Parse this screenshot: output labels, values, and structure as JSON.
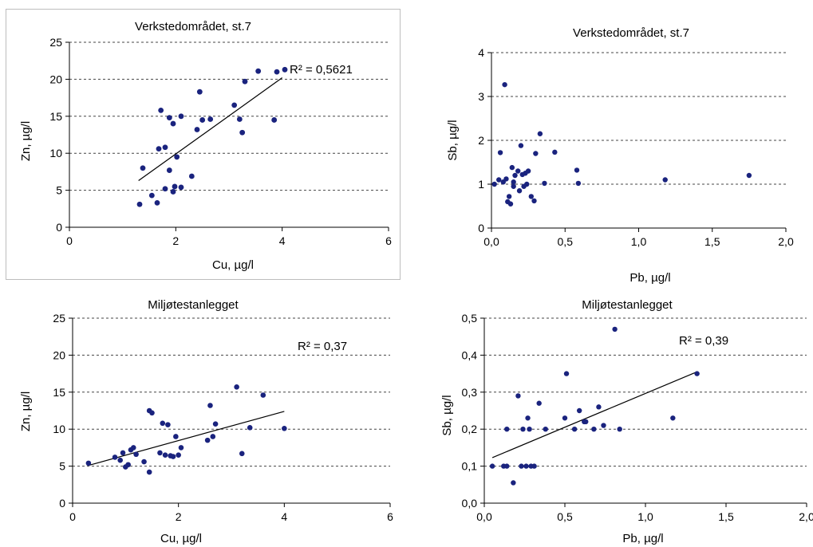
{
  "chart_data": [
    {
      "type": "scatter",
      "title": "Verkstedområdet, st.7",
      "xlabel": "Cu, µg/l",
      "ylabel": "Zn, µg/l",
      "xlim": [
        0,
        6
      ],
      "ylim": [
        0,
        25
      ],
      "xticks": [
        0,
        2,
        4,
        6
      ],
      "yticks": [
        0,
        5,
        10,
        15,
        20,
        25
      ],
      "xtick_labels": [
        "0",
        "2",
        "4",
        "6"
      ],
      "ytick_labels": [
        "0",
        "5",
        "10",
        "15",
        "20",
        "25"
      ],
      "annotation": "R² = 0,5621",
      "grid": "horizontal-dashed",
      "trendline": {
        "x1": 1.3,
        "y1": 6.3,
        "x2": 4.0,
        "y2": 20.2
      },
      "points": [
        [
          1.32,
          3.1
        ],
        [
          1.38,
          8.0
        ],
        [
          1.55,
          4.3
        ],
        [
          1.65,
          3.3
        ],
        [
          1.68,
          10.6
        ],
        [
          1.72,
          15.8
        ],
        [
          1.8,
          10.8
        ],
        [
          1.8,
          5.2
        ],
        [
          1.88,
          14.8
        ],
        [
          1.88,
          7.7
        ],
        [
          1.95,
          14.0
        ],
        [
          1.95,
          4.8
        ],
        [
          1.98,
          5.5
        ],
        [
          2.02,
          9.5
        ],
        [
          2.1,
          15.0
        ],
        [
          2.1,
          5.4
        ],
        [
          2.3,
          6.9
        ],
        [
          2.4,
          13.2
        ],
        [
          2.45,
          18.3
        ],
        [
          2.5,
          14.5
        ],
        [
          2.65,
          14.6
        ],
        [
          3.1,
          16.5
        ],
        [
          3.2,
          14.6
        ],
        [
          3.25,
          12.8
        ],
        [
          3.3,
          19.7
        ],
        [
          3.55,
          21.1
        ],
        [
          3.85,
          14.5
        ],
        [
          3.9,
          21.0
        ],
        [
          4.05,
          21.3
        ]
      ]
    },
    {
      "type": "scatter",
      "title": "Verkstedområdet, st.7",
      "xlabel": "Pb, µg/l",
      "ylabel": "Sb, µg/l",
      "xlim": [
        0,
        2
      ],
      "ylim": [
        0,
        4
      ],
      "xticks": [
        0,
        0.5,
        1,
        1.5,
        2
      ],
      "yticks": [
        0,
        1,
        2,
        3,
        4
      ],
      "xtick_labels": [
        "0,0",
        "0,5",
        "1,0",
        "1,5",
        "2,0"
      ],
      "ytick_labels": [
        "0",
        "1",
        "2",
        "3",
        "4"
      ],
      "annotation": "",
      "grid": "horizontal-dashed",
      "points": [
        [
          0.02,
          1.0
        ],
        [
          0.05,
          1.1
        ],
        [
          0.06,
          1.72
        ],
        [
          0.08,
          1.05
        ],
        [
          0.09,
          3.27
        ],
        [
          0.1,
          1.12
        ],
        [
          0.11,
          0.6
        ],
        [
          0.12,
          0.72
        ],
        [
          0.13,
          0.55
        ],
        [
          0.14,
          1.38
        ],
        [
          0.15,
          0.95
        ],
        [
          0.15,
          1.05
        ],
        [
          0.16,
          1.2
        ],
        [
          0.18,
          1.3
        ],
        [
          0.19,
          0.85
        ],
        [
          0.2,
          1.88
        ],
        [
          0.21,
          1.22
        ],
        [
          0.22,
          0.95
        ],
        [
          0.23,
          1.25
        ],
        [
          0.24,
          1.0
        ],
        [
          0.25,
          1.3
        ],
        [
          0.27,
          0.72
        ],
        [
          0.29,
          0.62
        ],
        [
          0.3,
          1.7
        ],
        [
          0.33,
          2.15
        ],
        [
          0.36,
          1.02
        ],
        [
          0.43,
          1.73
        ],
        [
          0.58,
          1.32
        ],
        [
          0.59,
          1.02
        ],
        [
          1.18,
          1.1
        ],
        [
          1.75,
          1.2
        ]
      ]
    },
    {
      "type": "scatter",
      "title": "Miljøtestanlegget",
      "xlabel": "Cu, µg/l",
      "ylabel": "Zn, µg/l",
      "xlim": [
        0,
        6
      ],
      "ylim": [
        0,
        25
      ],
      "xticks": [
        0,
        2,
        4,
        6
      ],
      "yticks": [
        0,
        5,
        10,
        15,
        20,
        25
      ],
      "xtick_labels": [
        "0",
        "2",
        "4",
        "6"
      ],
      "ytick_labels": [
        "0",
        "5",
        "10",
        "15",
        "20",
        "25"
      ],
      "annotation": "R² = 0,37",
      "grid": "horizontal-dashed",
      "trendline": {
        "x1": 0.3,
        "y1": 5.1,
        "x2": 4.0,
        "y2": 12.4
      },
      "points": [
        [
          0.3,
          5.4
        ],
        [
          0.8,
          6.2
        ],
        [
          0.9,
          5.8
        ],
        [
          0.95,
          6.8
        ],
        [
          1.0,
          4.9
        ],
        [
          1.05,
          5.2
        ],
        [
          1.1,
          7.2
        ],
        [
          1.15,
          7.5
        ],
        [
          1.2,
          6.6
        ],
        [
          1.35,
          5.6
        ],
        [
          1.45,
          4.2
        ],
        [
          1.45,
          12.5
        ],
        [
          1.5,
          12.2
        ],
        [
          1.65,
          6.8
        ],
        [
          1.7,
          10.8
        ],
        [
          1.75,
          6.5
        ],
        [
          1.8,
          10.6
        ],
        [
          1.85,
          6.4
        ],
        [
          1.9,
          6.3
        ],
        [
          1.95,
          9.0
        ],
        [
          2.0,
          6.5
        ],
        [
          2.05,
          7.5
        ],
        [
          2.55,
          8.5
        ],
        [
          2.6,
          13.2
        ],
        [
          2.65,
          9.0
        ],
        [
          2.7,
          10.7
        ],
        [
          3.1,
          15.7
        ],
        [
          3.2,
          6.7
        ],
        [
          3.35,
          10.2
        ],
        [
          3.6,
          14.6
        ],
        [
          4.0,
          10.1
        ]
      ]
    },
    {
      "type": "scatter",
      "title": "Miljøtestanlegget",
      "xlabel": "Pb, µg/l",
      "ylabel": "Sb, µg/l",
      "xlim": [
        0,
        2
      ],
      "ylim": [
        0,
        0.5
      ],
      "xticks": [
        0,
        0.5,
        1,
        1.5,
        2
      ],
      "yticks": [
        0,
        0.1,
        0.2,
        0.3,
        0.4,
        0.5
      ],
      "xtick_labels": [
        "0,0",
        "0,5",
        "1,0",
        "1,5",
        "2,0"
      ],
      "ytick_labels": [
        "0,0",
        "0,1",
        "0,2",
        "0,3",
        "0,4",
        "0,5"
      ],
      "annotation": "R² = 0,39",
      "grid": "horizontal-dashed",
      "trendline": {
        "x1": 0.05,
        "y1": 0.123,
        "x2": 1.32,
        "y2": 0.355
      },
      "points": [
        [
          0.05,
          0.1
        ],
        [
          0.12,
          0.1
        ],
        [
          0.14,
          0.1
        ],
        [
          0.14,
          0.2
        ],
        [
          0.18,
          0.055
        ],
        [
          0.21,
          0.29
        ],
        [
          0.23,
          0.1
        ],
        [
          0.24,
          0.2
        ],
        [
          0.26,
          0.1
        ],
        [
          0.27,
          0.23
        ],
        [
          0.28,
          0.2
        ],
        [
          0.29,
          0.1
        ],
        [
          0.31,
          0.1
        ],
        [
          0.34,
          0.27
        ],
        [
          0.38,
          0.2
        ],
        [
          0.5,
          0.23
        ],
        [
          0.51,
          0.35
        ],
        [
          0.56,
          0.2
        ],
        [
          0.59,
          0.25
        ],
        [
          0.62,
          0.22
        ],
        [
          0.63,
          0.22
        ],
        [
          0.68,
          0.2
        ],
        [
          0.71,
          0.26
        ],
        [
          0.74,
          0.21
        ],
        [
          0.81,
          0.47
        ],
        [
          0.84,
          0.2
        ],
        [
          1.17,
          0.23
        ],
        [
          1.32,
          0.35
        ]
      ]
    }
  ]
}
